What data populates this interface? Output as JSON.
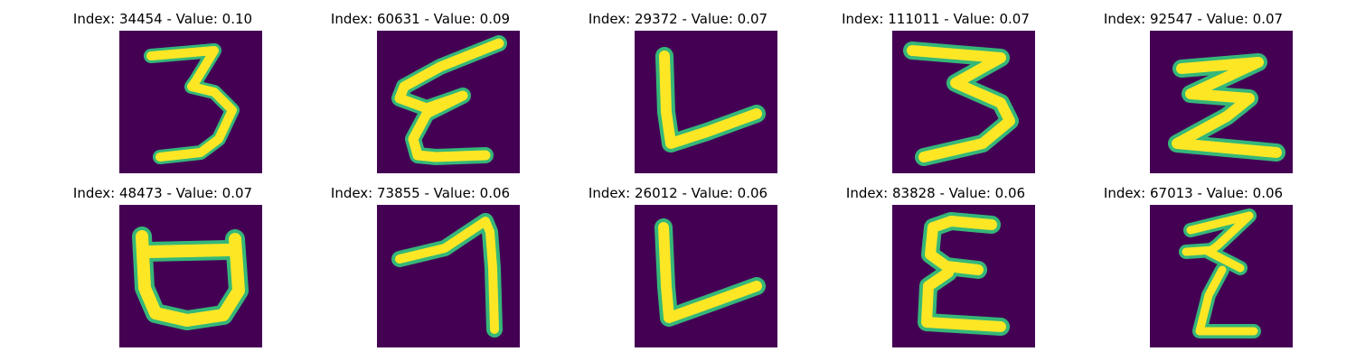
{
  "colors": {
    "background": "#440154",
    "stroke": "#fde725",
    "edge_mid": "#35b779",
    "edge_dark": "#2a788e"
  },
  "panels": [
    {
      "title": "Index: 34454 - Value: 0.10",
      "glyph": "3"
    },
    {
      "title": "Index: 60631 - Value: 0.09",
      "glyph": "epsilon"
    },
    {
      "title": "Index: 29372 - Value: 0.07",
      "glyph": "L"
    },
    {
      "title": "Index: 111011 - Value: 0.07",
      "glyph": "3"
    },
    {
      "title": "Index: 92547 - Value: 0.07",
      "glyph": "sigma"
    },
    {
      "title": "Index: 48473 - Value: 0.07",
      "glyph": "cup"
    },
    {
      "title": "Index: 73855 - Value: 0.06",
      "glyph": "seven"
    },
    {
      "title": "Index: 26012 - Value: 0.06",
      "glyph": "L"
    },
    {
      "title": "Index: 83828 - Value: 0.06",
      "glyph": "epsilon"
    },
    {
      "title": "Index: 67013 - Value: 0.06",
      "glyph": "z-stroke"
    }
  ]
}
